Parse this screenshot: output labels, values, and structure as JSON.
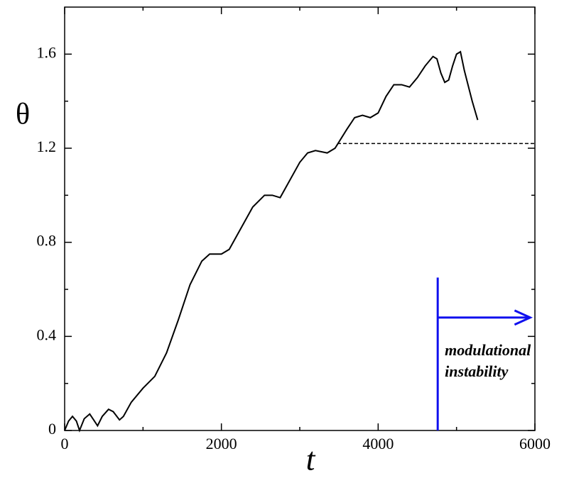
{
  "chart_data": {
    "type": "line",
    "x_label": "t",
    "y_label": "θ",
    "xlim": [
      0,
      6000
    ],
    "ylim": [
      0,
      1.8
    ],
    "xticks": [
      0,
      2000,
      4000,
      6000
    ],
    "yticks": [
      0,
      0.4,
      0.8,
      1.2,
      1.6
    ],
    "xminorticks": [
      1000,
      3000,
      5000
    ],
    "yminorticks": [
      0.2,
      0.6,
      1.0,
      1.4
    ],
    "series": [
      {
        "color": "#000000",
        "x": [
          0,
          50,
          100,
          150,
          190,
          250,
          320,
          380,
          420,
          480,
          560,
          620,
          700,
          750,
          850,
          1000,
          1150,
          1300,
          1450,
          1600,
          1750,
          1850,
          2000,
          2100,
          2250,
          2400,
          2550,
          2650,
          2750,
          2850,
          3000,
          3100,
          3200,
          3350,
          3450,
          3600,
          3700,
          3800,
          3900,
          4000,
          4100,
          4200,
          4300,
          4400,
          4500,
          4600,
          4700,
          4750,
          4800,
          4850,
          4900,
          4950,
          5000,
          5050,
          5100,
          5200,
          5270
        ],
        "values": [
          0,
          0.04,
          0.06,
          0.04,
          0.0,
          0.05,
          0.07,
          0.04,
          0.02,
          0.06,
          0.09,
          0.08,
          0.045,
          0.06,
          0.12,
          0.18,
          0.23,
          0.33,
          0.47,
          0.62,
          0.72,
          0.75,
          0.75,
          0.77,
          0.86,
          0.95,
          1.0,
          1.0,
          0.99,
          1.05,
          1.14,
          1.18,
          1.19,
          1.18,
          1.2,
          1.28,
          1.33,
          1.34,
          1.33,
          1.35,
          1.42,
          1.47,
          1.47,
          1.46,
          1.5,
          1.55,
          1.59,
          1.58,
          1.52,
          1.48,
          1.49,
          1.55,
          1.6,
          1.61,
          1.53,
          1.4,
          1.32
        ]
      }
    ],
    "reference_line": {
      "value": 1.22,
      "x": [
        3480,
        6000
      ],
      "color": "#000000"
    },
    "marker_line": {
      "x": 4760,
      "ylim": [
        0,
        0.65
      ],
      "arrow_to": 5940,
      "arrow_y": 0.48,
      "color": "#1010ee"
    },
    "annotation": {
      "lines": [
        "modulational",
        "instability"
      ],
      "color": "#1010ee"
    }
  }
}
